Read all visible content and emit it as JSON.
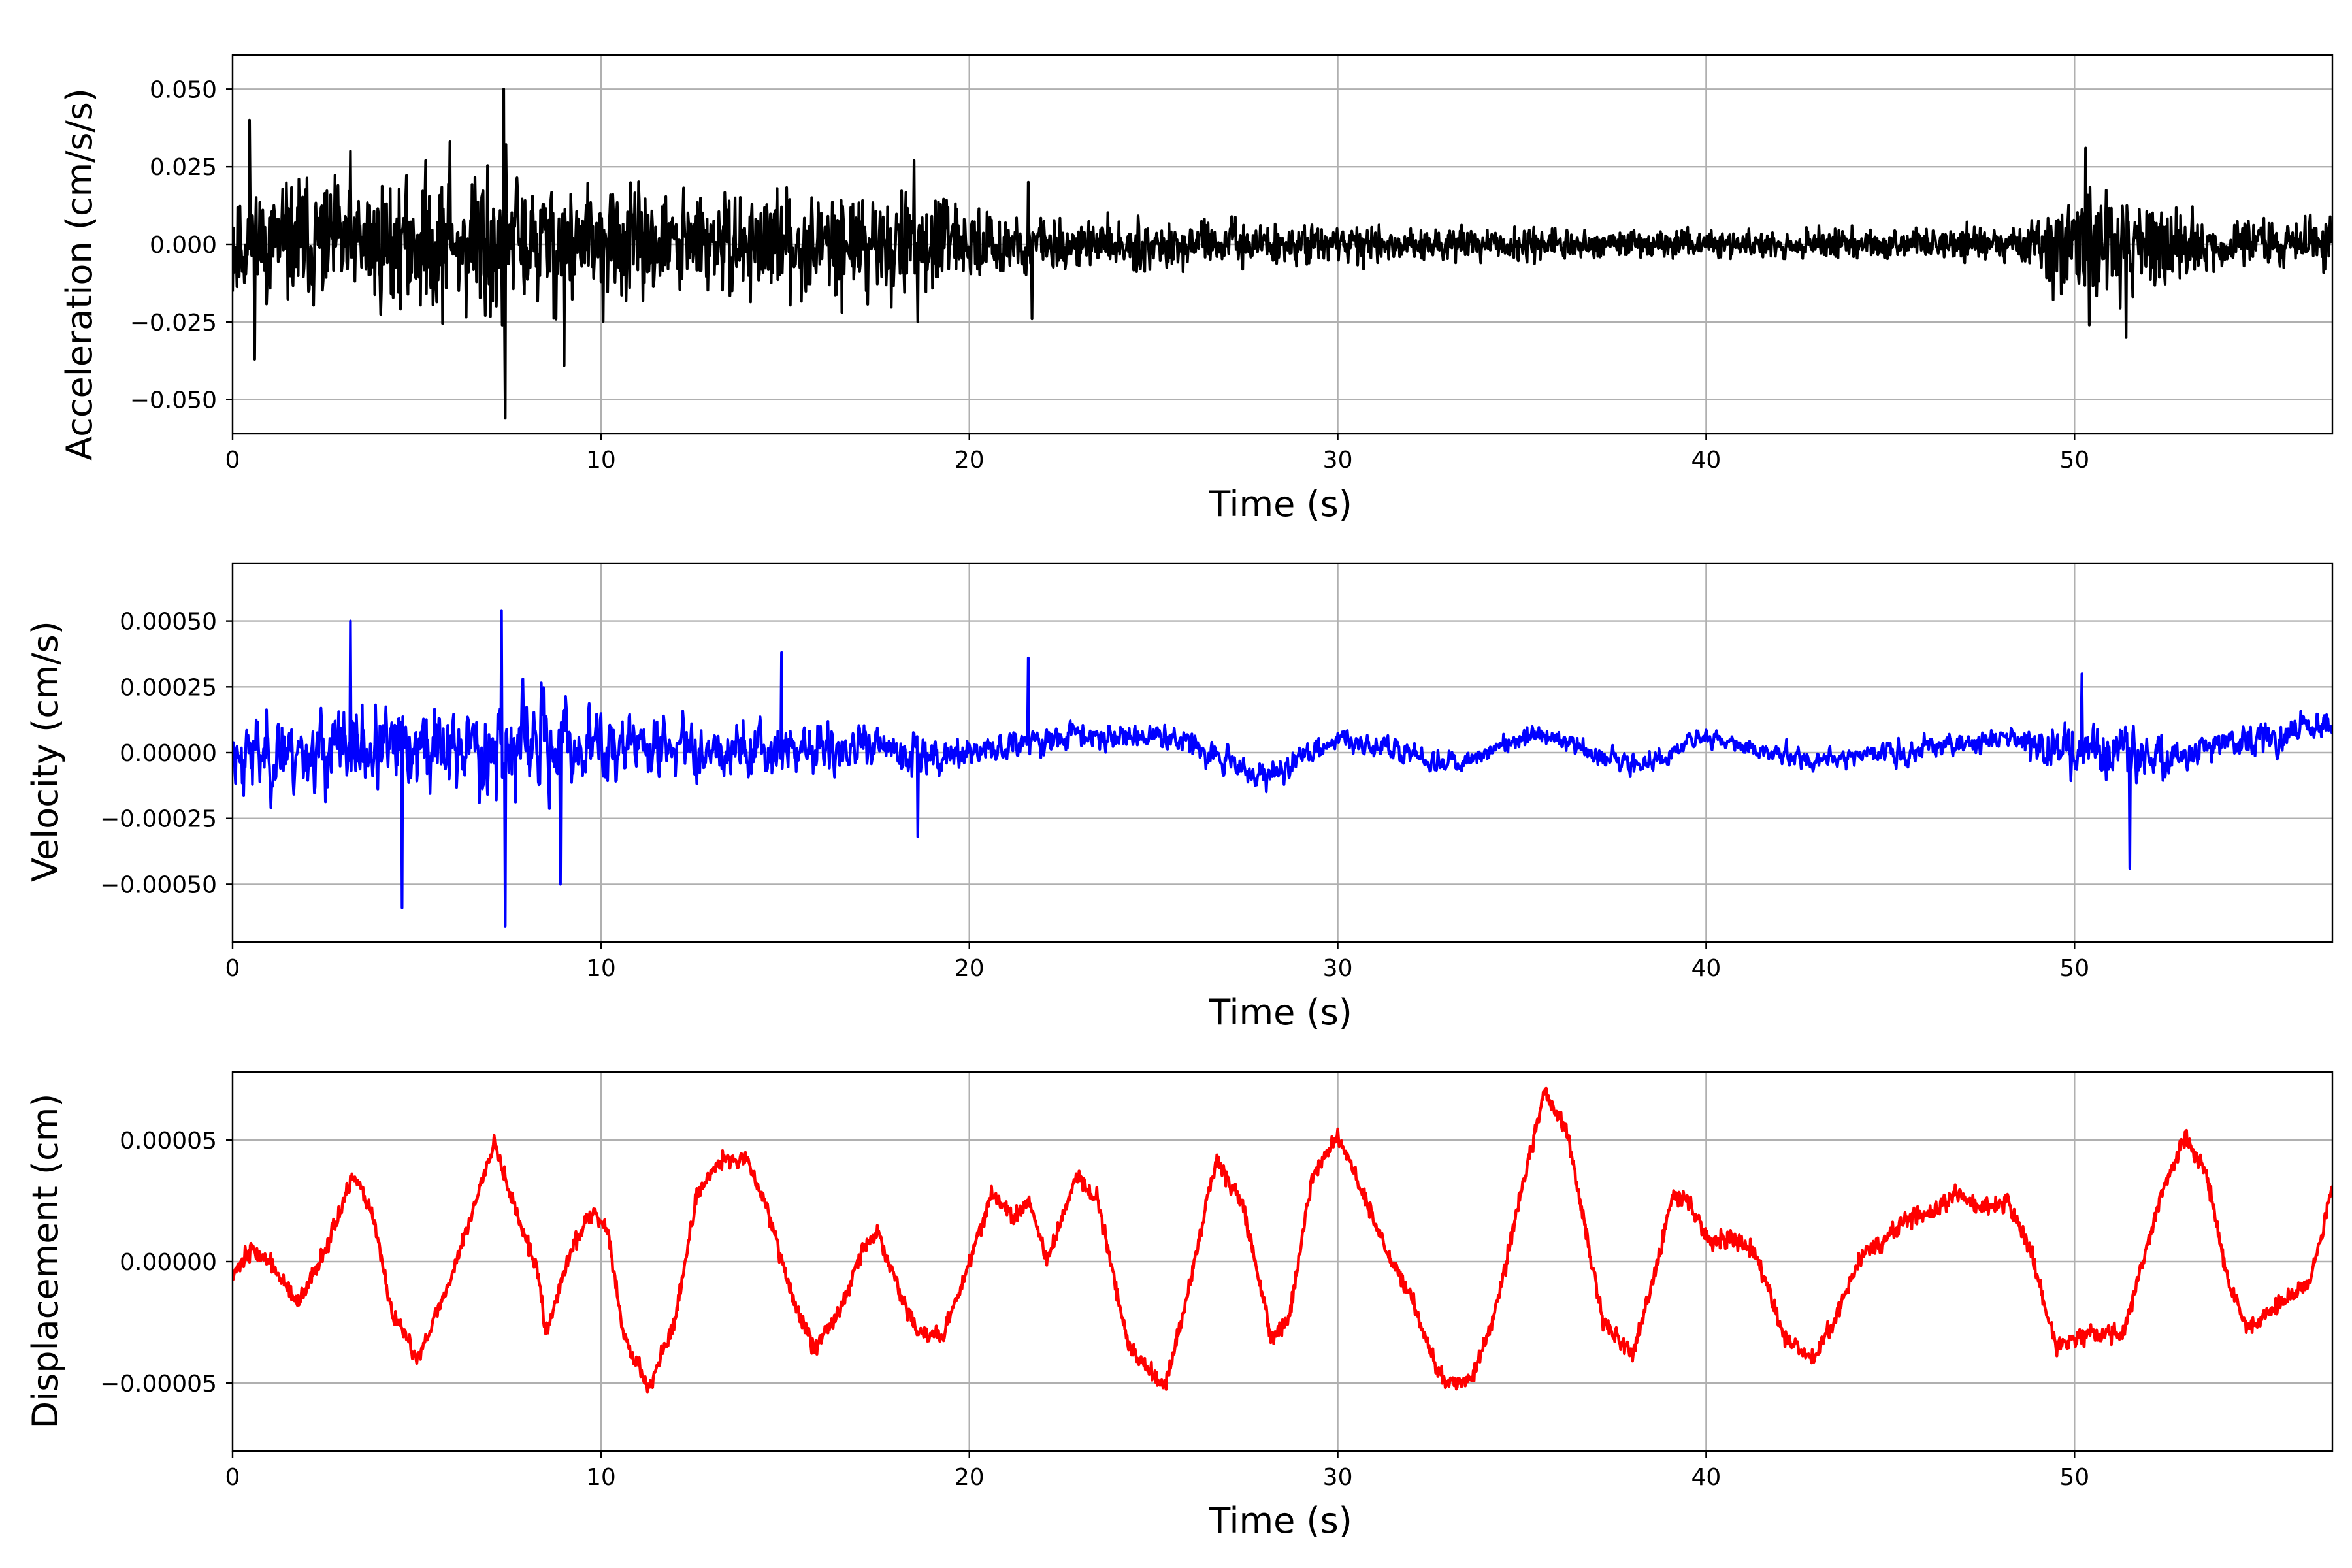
{
  "chart_data": [
    {
      "type": "line",
      "xlabel": "Time (s)",
      "ylabel": "Acceleration (cm/s/s)",
      "xlim": [
        0,
        57
      ],
      "ylim": [
        -0.061,
        0.061
      ],
      "xticks": [
        0,
        10,
        20,
        30,
        40,
        50
      ],
      "xtick_labels": [
        "0",
        "10",
        "20",
        "30",
        "40",
        "50"
      ],
      "yticks": [
        -0.05,
        -0.025,
        0,
        0.025,
        0.05
      ],
      "ytick_labels": [
        "−0.050",
        "−0.025",
        "0.000",
        "0.025",
        "0.050"
      ],
      "grid": true,
      "color": "#000000",
      "series": [
        {
          "kind": "noise",
          "dt": 0.02,
          "seed": 11,
          "envelope": [
            [
              0,
              0.012
            ],
            [
              3,
              0.014
            ],
            [
              6,
              0.015
            ],
            [
              7.3,
              0.021
            ],
            [
              8.5,
              0.016
            ],
            [
              10.5,
              0.012
            ],
            [
              14,
              0.011
            ],
            [
              18.5,
              0.011
            ],
            [
              20,
              0.007
            ],
            [
              22,
              0.006
            ],
            [
              25,
              0.005
            ],
            [
              30,
              0.004
            ],
            [
              35,
              0.0035
            ],
            [
              40,
              0.003
            ],
            [
              45,
              0.0035
            ],
            [
              48.5,
              0.004
            ],
            [
              49.5,
              0.011
            ],
            [
              50.5,
              0.012
            ],
            [
              52,
              0.009
            ],
            [
              54,
              0.006
            ],
            [
              57,
              0.005
            ]
          ],
          "peaks": [
            [
              7.35,
              0.05
            ],
            [
              7.4,
              -0.056
            ],
            [
              18.5,
              0.027
            ],
            [
              18.6,
              -0.025
            ],
            [
              21.6,
              0.02
            ],
            [
              21.7,
              -0.024
            ],
            [
              50.3,
              0.031
            ],
            [
              50.4,
              -0.026
            ],
            [
              51.4,
              -0.03
            ],
            [
              0.45,
              0.04
            ],
            [
              0.6,
              -0.037
            ],
            [
              9,
              -0.039
            ],
            [
              3.2,
              0.03
            ],
            [
              5.9,
              0.033
            ]
          ],
          "smooth": 0
        }
      ]
    },
    {
      "type": "line",
      "xlabel": "Time (s)",
      "ylabel": "Velocity (cm/s)",
      "xlim": [
        0,
        57
      ],
      "ylim": [
        -0.00072,
        0.00072
      ],
      "xticks": [
        0,
        10,
        20,
        30,
        40,
        50
      ],
      "xtick_labels": [
        "0",
        "10",
        "20",
        "30",
        "40",
        "50"
      ],
      "yticks": [
        -0.0005,
        -0.00025,
        0,
        0.00025,
        0.0005
      ],
      "ytick_labels": [
        "−0.00050",
        "−0.00025",
        "0.00000",
        "0.00025",
        "0.00050"
      ],
      "grid": true,
      "color": "#0000ff",
      "series": [
        {
          "kind": "noise",
          "dt": 0.02,
          "seed": 23,
          "envelope": [
            [
              0,
              0.00016
            ],
            [
              3,
              0.00017
            ],
            [
              6,
              0.00018
            ],
            [
              7.3,
              0.00022
            ],
            [
              9,
              0.0002
            ],
            [
              11,
              0.00013
            ],
            [
              15,
              0.00011
            ],
            [
              18.5,
              0.0001
            ],
            [
              20,
              7e-05
            ],
            [
              24,
              6e-05
            ],
            [
              30,
              5e-05
            ],
            [
              40,
              4e-05
            ],
            [
              48.5,
              5e-05
            ],
            [
              49.5,
              0.00012
            ],
            [
              51,
              0.00013
            ],
            [
              53,
              8e-05
            ],
            [
              57,
              6e-05
            ]
          ],
          "baseline": [
            [
              0,
              0.0
            ],
            [
              10,
              3e-05
            ],
            [
              20,
              0.0
            ],
            [
              23,
              7e-05
            ],
            [
              26,
              5e-05
            ],
            [
              28,
              -0.0001
            ],
            [
              30,
              6e-05
            ],
            [
              33,
              -5e-05
            ],
            [
              35.5,
              8e-05
            ],
            [
              38,
              -5e-05
            ],
            [
              40,
              5e-05
            ],
            [
              43,
              -3e-05
            ],
            [
              46,
              2e-05
            ],
            [
              48,
              6e-05
            ],
            [
              52,
              -3e-05
            ],
            [
              57,
              0.0001
            ]
          ],
          "peaks": [
            [
              7.3,
              0.00054
            ],
            [
              7.4,
              -0.00066
            ],
            [
              4.6,
              -0.00059
            ],
            [
              3.2,
              0.0005
            ],
            [
              8.9,
              -0.0005
            ],
            [
              21.6,
              0.00036
            ],
            [
              18.6,
              -0.00032
            ],
            [
              50.2,
              0.0003
            ],
            [
              51.5,
              -0.00044
            ],
            [
              14.9,
              0.00038
            ]
          ],
          "smooth": 1
        }
      ]
    },
    {
      "type": "line",
      "xlabel": "Time (s)",
      "ylabel": "Displacement (cm)",
      "xlim": [
        0,
        57
      ],
      "ylim": [
        -7.8e-05,
        7.8e-05
      ],
      "xticks": [
        0,
        10,
        20,
        30,
        40,
        50
      ],
      "xtick_labels": [
        "0",
        "10",
        "20",
        "30",
        "40",
        "50"
      ],
      "yticks": [
        -5e-05,
        0,
        5e-05
      ],
      "ytick_labels": [
        "−0.00005",
        "0.00000",
        "0.00005"
      ],
      "grid": true,
      "color": "#ff0000",
      "series": [
        {
          "kind": "curve",
          "dt": 0.02,
          "seed": 37,
          "jitter": 2.5e-06,
          "points": [
            [
              0,
              -5e-06
            ],
            [
              0.5,
              5e-06
            ],
            [
              1,
              0.0
            ],
            [
              1.8,
              -1.8e-05
            ],
            [
              2.5,
              5e-06
            ],
            [
              3.3,
              3.5e-05
            ],
            [
              3.8,
              2e-05
            ],
            [
              4.3,
              -2e-05
            ],
            [
              5,
              -4e-05
            ],
            [
              5.8,
              -1.2e-05
            ],
            [
              6.5,
              2e-05
            ],
            [
              7.1,
              5e-05
            ],
            [
              7.7,
              2e-05
            ],
            [
              8.3,
              -5e-06
            ],
            [
              8.5,
              -3e-05
            ],
            [
              9.2,
              5e-06
            ],
            [
              9.8,
              2.2e-05
            ],
            [
              10.2,
              1.2e-05
            ],
            [
              10.6,
              -3e-05
            ],
            [
              11.3,
              -5.2e-05
            ],
            [
              12,
              -2.5e-05
            ],
            [
              12.6,
              2.8e-05
            ],
            [
              13.3,
              4.2e-05
            ],
            [
              14,
              4.2e-05
            ],
            [
              14.6,
              1.8e-05
            ],
            [
              15.3,
              -2e-05
            ],
            [
              15.8,
              -3.5e-05
            ],
            [
              16.5,
              -2e-05
            ],
            [
              17.1,
              5e-06
            ],
            [
              17.5,
              1.2e-05
            ],
            [
              18,
              -8e-06
            ],
            [
              18.6,
              -3e-05
            ],
            [
              19.3,
              -3e-05
            ],
            [
              20,
              0.0
            ],
            [
              20.6,
              2.8e-05
            ],
            [
              21.2,
              1.8e-05
            ],
            [
              21.6,
              2.5e-05
            ],
            [
              22.1,
              0.0
            ],
            [
              22.9,
              3.5e-05
            ],
            [
              23.5,
              2.5e-05
            ],
            [
              24.3,
              -3.5e-05
            ],
            [
              25.3,
              -5.2e-05
            ],
            [
              25.9,
              -1.5e-05
            ],
            [
              26.7,
              4.2e-05
            ],
            [
              27.4,
              2.5e-05
            ],
            [
              28.2,
              -3.2e-05
            ],
            [
              28.7,
              -2.2e-05
            ],
            [
              29.3,
              3.5e-05
            ],
            [
              30,
              5.2e-05
            ],
            [
              30.5,
              3.5e-05
            ],
            [
              31.3,
              5e-06
            ],
            [
              32,
              -1.5e-05
            ],
            [
              32.8,
              -4.8e-05
            ],
            [
              33.6,
              -5e-05
            ],
            [
              34.3,
              -2e-05
            ],
            [
              35,
              3e-05
            ],
            [
              35.6,
              7e-05
            ],
            [
              36.2,
              5.5e-05
            ],
            [
              37.2,
              -2.5e-05
            ],
            [
              38,
              -3.8e-05
            ],
            [
              38.6,
              -5e-06
            ],
            [
              39.1,
              2.8e-05
            ],
            [
              39.5,
              2.5e-05
            ],
            [
              40.1,
              8e-06
            ],
            [
              40.7,
              1e-05
            ],
            [
              41.3,
              5e-06
            ],
            [
              42.1,
              -3e-05
            ],
            [
              42.9,
              -4e-05
            ],
            [
              43.6,
              -2e-05
            ],
            [
              44.2,
              2e-06
            ],
            [
              44.8,
              8e-06
            ],
            [
              45.5,
              1.8e-05
            ],
            [
              46.2,
              2e-05
            ],
            [
              46.8,
              2.8e-05
            ],
            [
              47.5,
              2.2e-05
            ],
            [
              48.2,
              2.5e-05
            ],
            [
              48.8,
              5e-06
            ],
            [
              49.5,
              -3.5e-05
            ],
            [
              50.3,
              -3e-05
            ],
            [
              51.3,
              -3e-05
            ],
            [
              52.3,
              2.5e-05
            ],
            [
              53,
              5.2e-05
            ],
            [
              53.6,
              3.5e-05
            ],
            [
              54.2,
              -1e-05
            ],
            [
              54.7,
              -2.8e-05
            ],
            [
              55.5,
              -1.8e-05
            ],
            [
              56.4,
              -8e-06
            ],
            [
              57,
              3e-05
            ]
          ]
        }
      ]
    }
  ]
}
